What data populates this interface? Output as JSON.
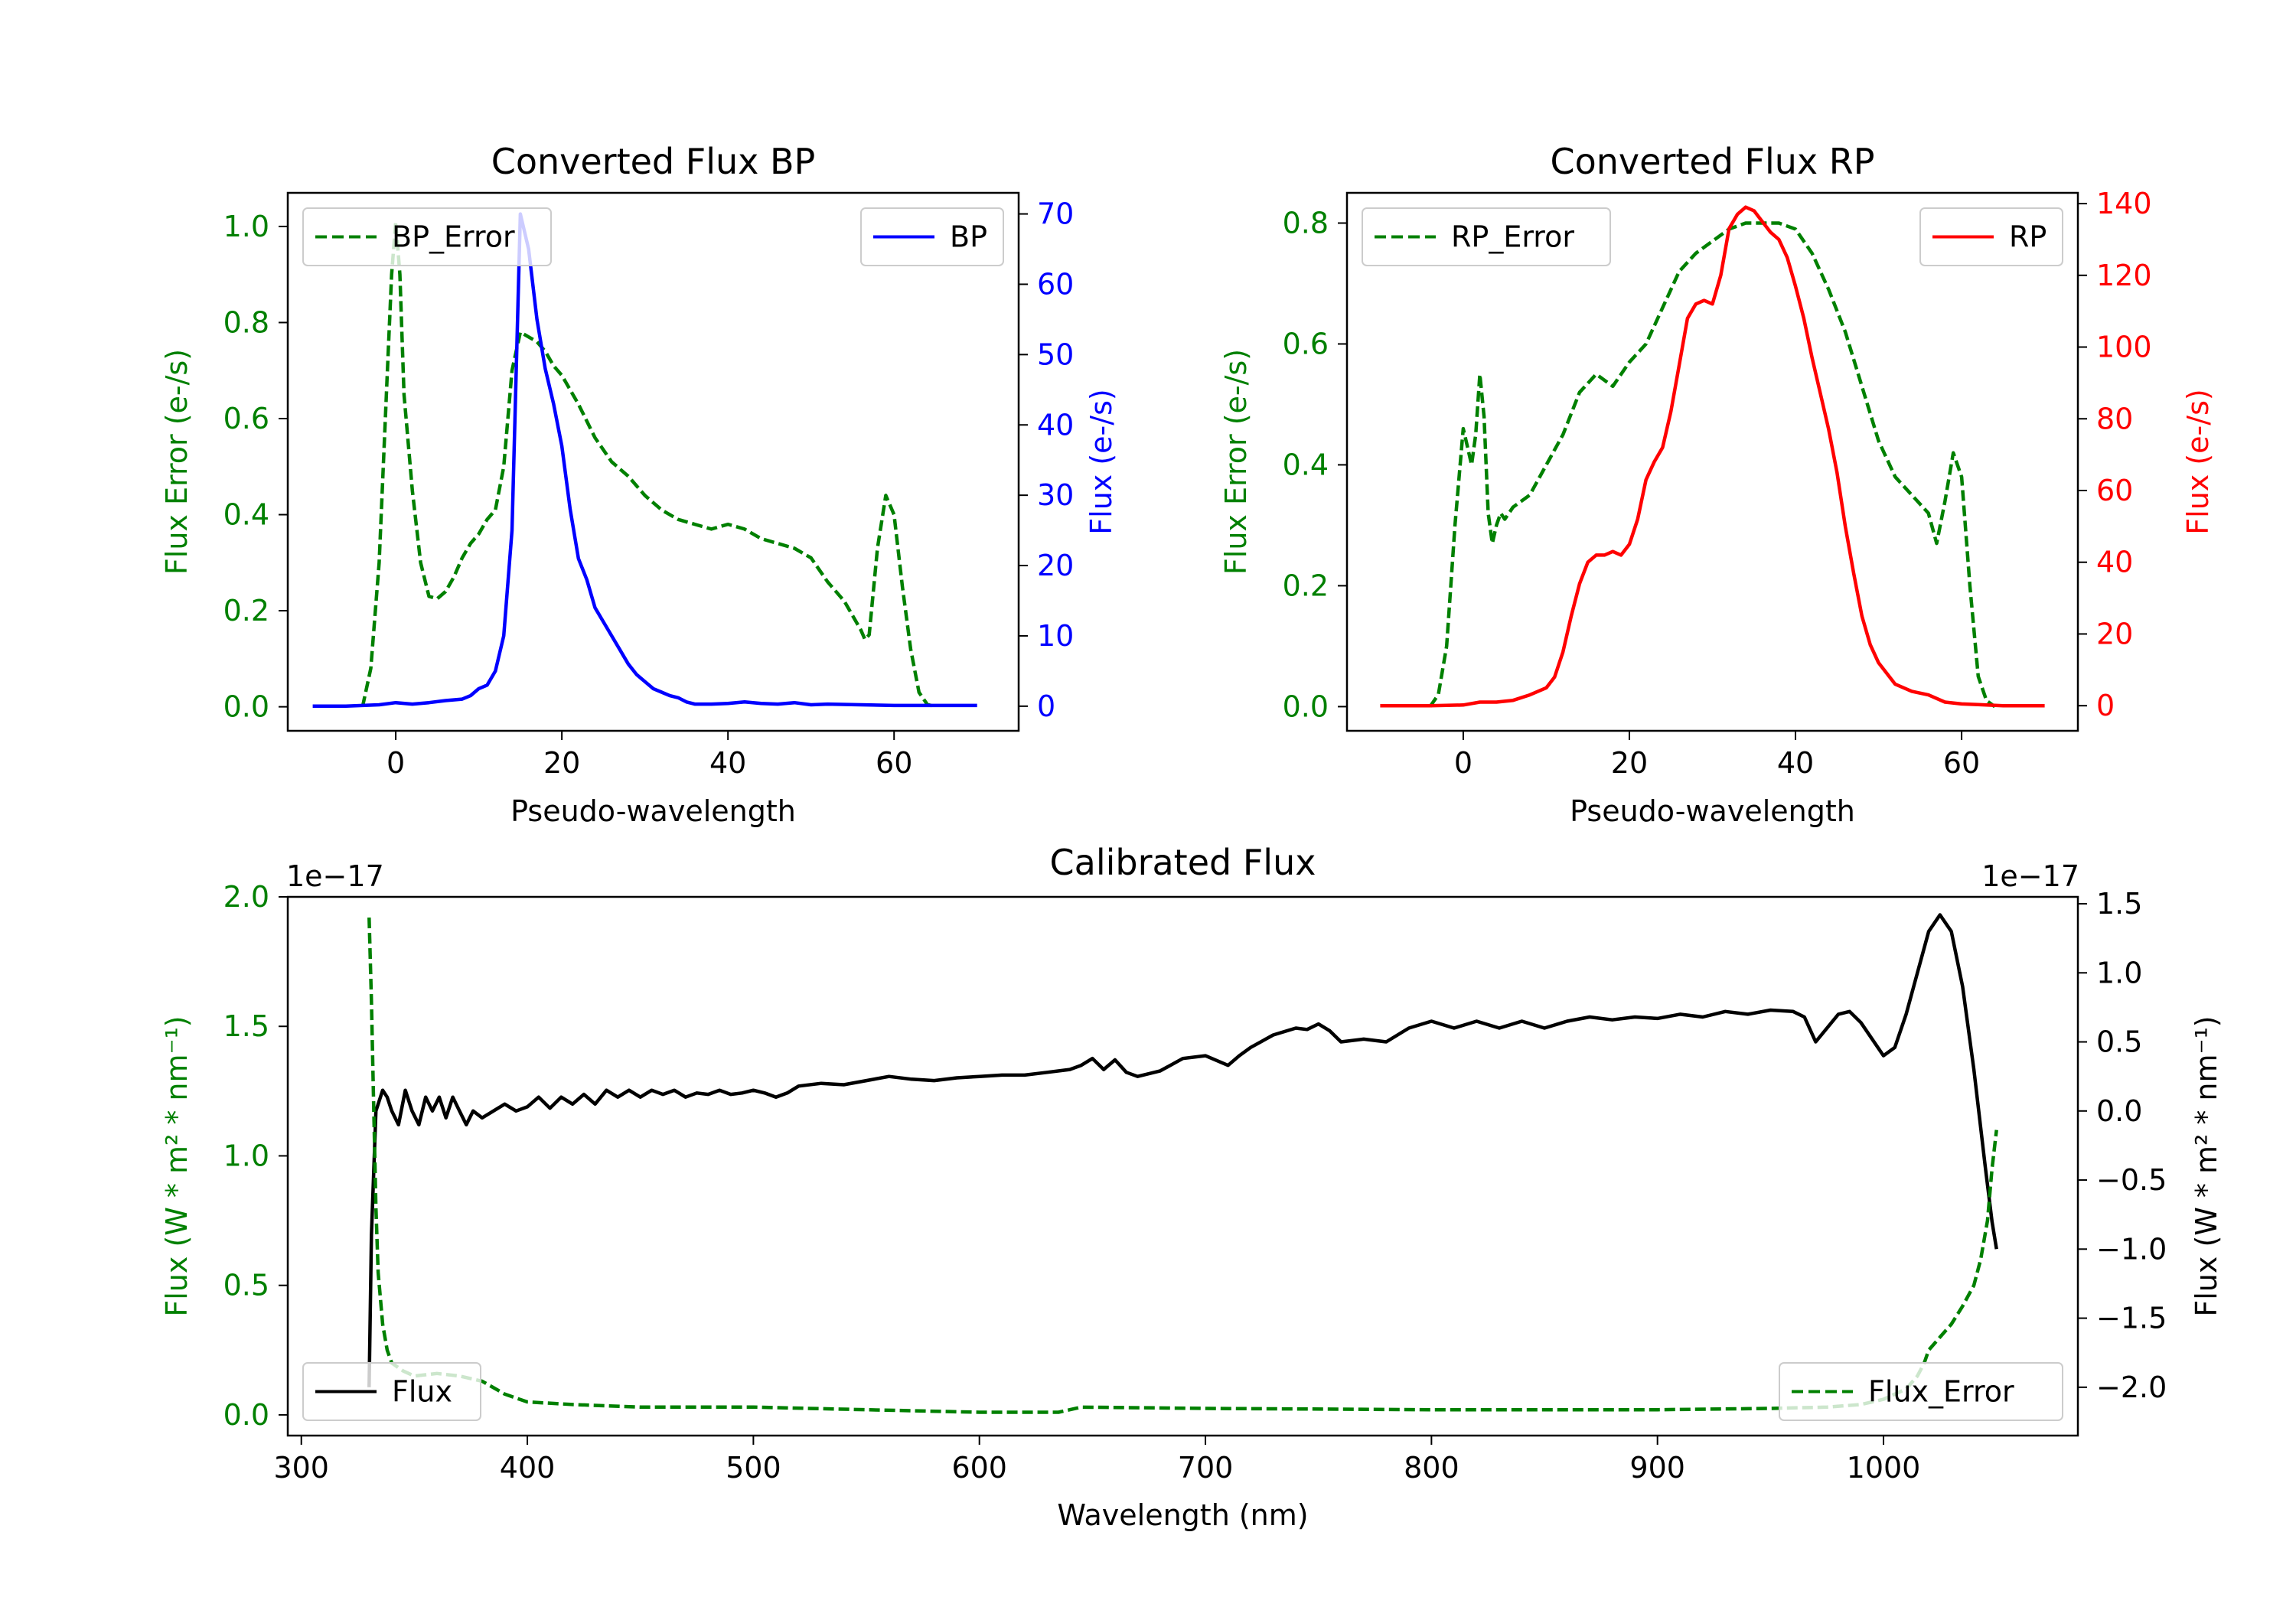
{
  "colors": {
    "error": "#008000",
    "bp": "#0000ff",
    "rp": "#ff0000",
    "flux": "#000000",
    "axis": "#000000"
  },
  "chart_data": [
    {
      "id": "bp",
      "type": "line",
      "title": "Converted Flux BP",
      "xlabel": "Pseudo-wavelength",
      "ylabel_left": "Flux Error (e-/s)",
      "ylabel_right": "Flux (e-/s)",
      "xlim": [
        -13,
        75
      ],
      "ylim_left": [
        -0.05,
        1.07
      ],
      "ylim_right": [
        -3.5,
        73
      ],
      "xticks": [
        0,
        20,
        40,
        60
      ],
      "xtick_labels": [
        "0",
        "20",
        "40",
        "60"
      ],
      "yticks_left": [
        0.0,
        0.2,
        0.4,
        0.6,
        0.8,
        1.0
      ],
      "ytick_labels_left": [
        "0.0",
        "0.2",
        "0.4",
        "0.6",
        "0.8",
        "1.0"
      ],
      "yticks_right": [
        0,
        10,
        20,
        30,
        40,
        50,
        60,
        70
      ],
      "ytick_labels_right": [
        "0",
        "10",
        "20",
        "30",
        "40",
        "50",
        "60",
        "70"
      ],
      "left_tick_color": "#008000",
      "right_tick_color": "#0000ff",
      "legend_left": {
        "label": "BP_Error",
        "position": "upper left"
      },
      "legend_right": {
        "label": "BP",
        "position": "upper right"
      },
      "series": [
        {
          "name": "BP_Error",
          "axis": "left",
          "style": "dashed",
          "color": "#008000",
          "x": [
            -4,
            -3,
            -2,
            -1,
            -0.5,
            0,
            0.5,
            1,
            2,
            3,
            4,
            5,
            6,
            7,
            8,
            9,
            10,
            11,
            12,
            13,
            14,
            15,
            16,
            17,
            18,
            19,
            20,
            22,
            24,
            26,
            28,
            30,
            32,
            34,
            36,
            38,
            40,
            42,
            44,
            46,
            48,
            50,
            52,
            54,
            56,
            56.5,
            57,
            58,
            59,
            60,
            61,
            62,
            63,
            64,
            65
          ],
          "y": [
            0.0,
            0.08,
            0.3,
            0.7,
            0.9,
            1.01,
            0.9,
            0.65,
            0.45,
            0.3,
            0.23,
            0.225,
            0.24,
            0.27,
            0.31,
            0.34,
            0.36,
            0.39,
            0.41,
            0.5,
            0.7,
            0.78,
            0.77,
            0.76,
            0.74,
            0.71,
            0.69,
            0.63,
            0.56,
            0.51,
            0.48,
            0.44,
            0.41,
            0.39,
            0.38,
            0.37,
            0.38,
            0.37,
            0.35,
            0.34,
            0.33,
            0.31,
            0.26,
            0.22,
            0.16,
            0.14,
            0.15,
            0.33,
            0.44,
            0.4,
            0.25,
            0.12,
            0.03,
            0.005,
            0.0
          ]
        },
        {
          "name": "BP",
          "axis": "right",
          "style": "solid",
          "color": "#0000ff",
          "x": [
            -10,
            -6,
            -2,
            0,
            2,
            4,
            6,
            8,
            9,
            10,
            11,
            12,
            13,
            14,
            15,
            16,
            17,
            18,
            19,
            20,
            21,
            22,
            23,
            24,
            25,
            26,
            27,
            28,
            29,
            30,
            31,
            32,
            33,
            34,
            35,
            36,
            38,
            40,
            42,
            44,
            46,
            48,
            50,
            52,
            56,
            60,
            65,
            70
          ],
          "y": [
            0,
            0,
            0.2,
            0.5,
            0.3,
            0.5,
            0.8,
            1.0,
            1.5,
            2.5,
            3,
            5,
            10,
            25,
            70,
            65,
            55,
            48,
            43,
            37,
            28,
            21,
            18,
            14,
            12,
            10,
            8,
            6,
            4.5,
            3.5,
            2.5,
            2,
            1.5,
            1.2,
            0.6,
            0.3,
            0.3,
            0.4,
            0.6,
            0.4,
            0.3,
            0.5,
            0.2,
            0.3,
            0.2,
            0.1,
            0.1,
            0.1
          ]
        }
      ]
    },
    {
      "id": "rp",
      "type": "line",
      "title": "Converted Flux RP",
      "xlabel": "Pseudo-wavelength",
      "ylabel_left": "Flux Error (e-/s)",
      "ylabel_right": "Flux (e-/s)",
      "xlim": [
        -14,
        74
      ],
      "ylim_left": [
        -0.04,
        0.85
      ],
      "ylim_right": [
        -7,
        143
      ],
      "xticks": [
        0,
        20,
        40,
        60
      ],
      "xtick_labels": [
        "0",
        "20",
        "40",
        "60"
      ],
      "yticks_left": [
        0.0,
        0.2,
        0.4,
        0.6,
        0.8
      ],
      "ytick_labels_left": [
        "0.0",
        "0.2",
        "0.4",
        "0.6",
        "0.8"
      ],
      "yticks_right": [
        0,
        20,
        40,
        60,
        80,
        100,
        120,
        140
      ],
      "ytick_labels_right": [
        "0",
        "20",
        "40",
        "60",
        "80",
        "100",
        "120",
        "140"
      ],
      "left_tick_color": "#008000",
      "right_tick_color": "#ff0000",
      "legend_left": {
        "label": "RP_Error",
        "position": "upper left"
      },
      "legend_right": {
        "label": "RP",
        "position": "upper right"
      },
      "series": [
        {
          "name": "RP_Error",
          "axis": "left",
          "style": "dashed",
          "color": "#008000",
          "x": [
            -4,
            -3,
            -2,
            -1,
            0,
            0.5,
            1,
            1.5,
            2,
            2.5,
            3,
            3.5,
            4,
            4.5,
            5,
            6,
            8,
            10,
            12,
            14,
            16,
            18,
            20,
            22,
            24,
            26,
            28,
            30,
            32,
            34,
            36,
            38,
            40,
            42,
            44,
            46,
            48,
            50,
            52,
            54,
            56,
            57,
            58,
            59,
            60,
            61,
            62,
            63,
            64
          ],
          "y": [
            0.0,
            0.02,
            0.1,
            0.3,
            0.46,
            0.43,
            0.4,
            0.45,
            0.55,
            0.48,
            0.32,
            0.27,
            0.3,
            0.32,
            0.31,
            0.33,
            0.35,
            0.4,
            0.45,
            0.52,
            0.55,
            0.53,
            0.57,
            0.6,
            0.66,
            0.72,
            0.75,
            0.77,
            0.79,
            0.8,
            0.8,
            0.8,
            0.79,
            0.75,
            0.69,
            0.62,
            0.53,
            0.44,
            0.38,
            0.35,
            0.32,
            0.27,
            0.34,
            0.42,
            0.38,
            0.2,
            0.05,
            0.01,
            0.0
          ]
        },
        {
          "name": "RP",
          "axis": "right",
          "style": "solid",
          "color": "#ff0000",
          "x": [
            -10,
            -4,
            0,
            2,
            4,
            6,
            8,
            10,
            11,
            12,
            13,
            14,
            15,
            16,
            17,
            18,
            19,
            20,
            21,
            22,
            23,
            24,
            25,
            26,
            27,
            28,
            29,
            30,
            31,
            32,
            33,
            34,
            35,
            36,
            37,
            38,
            39,
            40,
            41,
            42,
            43,
            44,
            45,
            46,
            47,
            48,
            49,
            50,
            52,
            54,
            56,
            58,
            60,
            62,
            65,
            70
          ],
          "y": [
            0,
            0,
            0.2,
            1,
            1,
            1.5,
            3,
            5,
            8,
            15,
            25,
            34,
            40,
            42,
            42,
            43,
            42,
            45,
            52,
            63,
            68,
            72,
            82,
            95,
            108,
            112,
            113,
            112,
            120,
            133,
            137,
            139,
            138,
            135,
            132,
            130,
            125,
            117,
            108,
            97,
            87,
            77,
            65,
            50,
            37,
            25,
            17,
            12,
            6,
            4,
            3,
            1,
            0.5,
            0.3,
            0,
            0
          ]
        }
      ]
    },
    {
      "id": "calibrated",
      "type": "line",
      "title": "Calibrated Flux",
      "xlabel": "Wavelength (nm)",
      "ylabel_left": "Flux (W * m² * nm⁻¹)",
      "ylabel_right": "Flux (W * m² * nm⁻¹)",
      "offset_left": "1e−17",
      "offset_right": "1e−17",
      "xlim": [
        294,
        1086
      ],
      "ylim_left": [
        -0.08,
        2.0
      ],
      "ylim_right": [
        -2.35,
        1.55
      ],
      "xticks": [
        300,
        400,
        500,
        600,
        700,
        800,
        900,
        1000
      ],
      "xtick_labels": [
        "300",
        "400",
        "500",
        "600",
        "700",
        "800",
        "900",
        "1000"
      ],
      "yticks_left": [
        0.0,
        0.5,
        1.0,
        1.5,
        2.0
      ],
      "ytick_labels_left": [
        "0.0",
        "0.5",
        "1.0",
        "1.5",
        "2.0"
      ],
      "yticks_right": [
        -2.0,
        -1.5,
        -1.0,
        -0.5,
        0.0,
        0.5,
        1.0,
        1.5
      ],
      "ytick_labels_right": [
        "−2.0",
        "−1.5",
        "−1.0",
        "−0.5",
        "0.0",
        "0.5",
        "1.0",
        "1.5"
      ],
      "left_tick_color": "#008000",
      "right_tick_color": "#000000",
      "legend_left": {
        "label": "Flux",
        "position": "lower left"
      },
      "legend_right": {
        "label": "Flux_Error",
        "position": "lower right"
      },
      "series": [
        {
          "name": "Flux",
          "axis": "right",
          "style": "solid",
          "color": "#000000",
          "x": [
            330,
            331,
            333,
            336,
            338,
            340,
            343,
            346,
            349,
            352,
            355,
            358,
            361,
            364,
            367,
            370,
            373,
            376,
            380,
            385,
            390,
            395,
            400,
            405,
            410,
            415,
            420,
            425,
            430,
            435,
            440,
            445,
            450,
            455,
            460,
            465,
            470,
            475,
            480,
            485,
            490,
            495,
            500,
            505,
            510,
            515,
            520,
            530,
            540,
            550,
            560,
            570,
            580,
            590,
            600,
            610,
            620,
            630,
            640,
            645,
            650,
            655,
            660,
            665,
            670,
            680,
            690,
            700,
            710,
            715,
            720,
            730,
            740,
            745,
            750,
            755,
            760,
            770,
            780,
            790,
            800,
            810,
            820,
            830,
            840,
            850,
            860,
            870,
            880,
            890,
            900,
            910,
            920,
            930,
            940,
            950,
            960,
            965,
            970,
            980,
            985,
            990,
            1000,
            1005,
            1010,
            1015,
            1020,
            1025,
            1030,
            1035,
            1040,
            1045,
            1048,
            1050
          ],
          "y": [
            -2.0,
            -0.9,
            0.0,
            0.15,
            0.1,
            0.0,
            -0.1,
            0.15,
            0.0,
            -0.1,
            0.1,
            0.0,
            0.1,
            -0.05,
            0.1,
            0.0,
            -0.1,
            0.0,
            -0.05,
            0.0,
            0.05,
            0.0,
            0.03,
            0.1,
            0.02,
            0.1,
            0.05,
            0.12,
            0.05,
            0.15,
            0.1,
            0.15,
            0.1,
            0.15,
            0.12,
            0.15,
            0.1,
            0.13,
            0.12,
            0.15,
            0.12,
            0.13,
            0.15,
            0.13,
            0.1,
            0.13,
            0.18,
            0.2,
            0.19,
            0.22,
            0.25,
            0.23,
            0.22,
            0.24,
            0.25,
            0.26,
            0.26,
            0.28,
            0.3,
            0.33,
            0.38,
            0.3,
            0.37,
            0.28,
            0.25,
            0.29,
            0.38,
            0.4,
            0.33,
            0.4,
            0.46,
            0.55,
            0.6,
            0.59,
            0.63,
            0.58,
            0.5,
            0.52,
            0.5,
            0.6,
            0.65,
            0.6,
            0.65,
            0.6,
            0.65,
            0.6,
            0.65,
            0.68,
            0.66,
            0.68,
            0.67,
            0.7,
            0.68,
            0.72,
            0.7,
            0.73,
            0.72,
            0.68,
            0.5,
            0.7,
            0.72,
            0.64,
            0.4,
            0.46,
            0.7,
            1.0,
            1.3,
            1.42,
            1.3,
            0.9,
            0.3,
            -0.4,
            -0.8,
            -1.0
          ]
        },
        {
          "name": "Flux_Error",
          "axis": "left",
          "style": "dashed",
          "color": "#008000",
          "x": [
            330,
            331,
            332,
            333,
            334,
            336,
            338,
            340,
            345,
            350,
            360,
            370,
            380,
            390,
            400,
            420,
            450,
            500,
            550,
            600,
            635,
            640,
            645,
            700,
            800,
            900,
            950,
            975,
            990,
            1000,
            1005,
            1010,
            1015,
            1018,
            1020,
            1025,
            1030,
            1035,
            1040,
            1043,
            1046,
            1048,
            1050
          ],
          "y": [
            1.92,
            1.6,
            1.2,
            0.8,
            0.55,
            0.35,
            0.25,
            0.2,
            0.17,
            0.15,
            0.16,
            0.15,
            0.13,
            0.08,
            0.05,
            0.04,
            0.03,
            0.03,
            0.02,
            0.01,
            0.01,
            0.02,
            0.03,
            0.025,
            0.02,
            0.02,
            0.025,
            0.03,
            0.04,
            0.06,
            0.08,
            0.1,
            0.15,
            0.2,
            0.25,
            0.3,
            0.35,
            0.42,
            0.5,
            0.6,
            0.75,
            0.95,
            1.1
          ]
        }
      ]
    }
  ]
}
